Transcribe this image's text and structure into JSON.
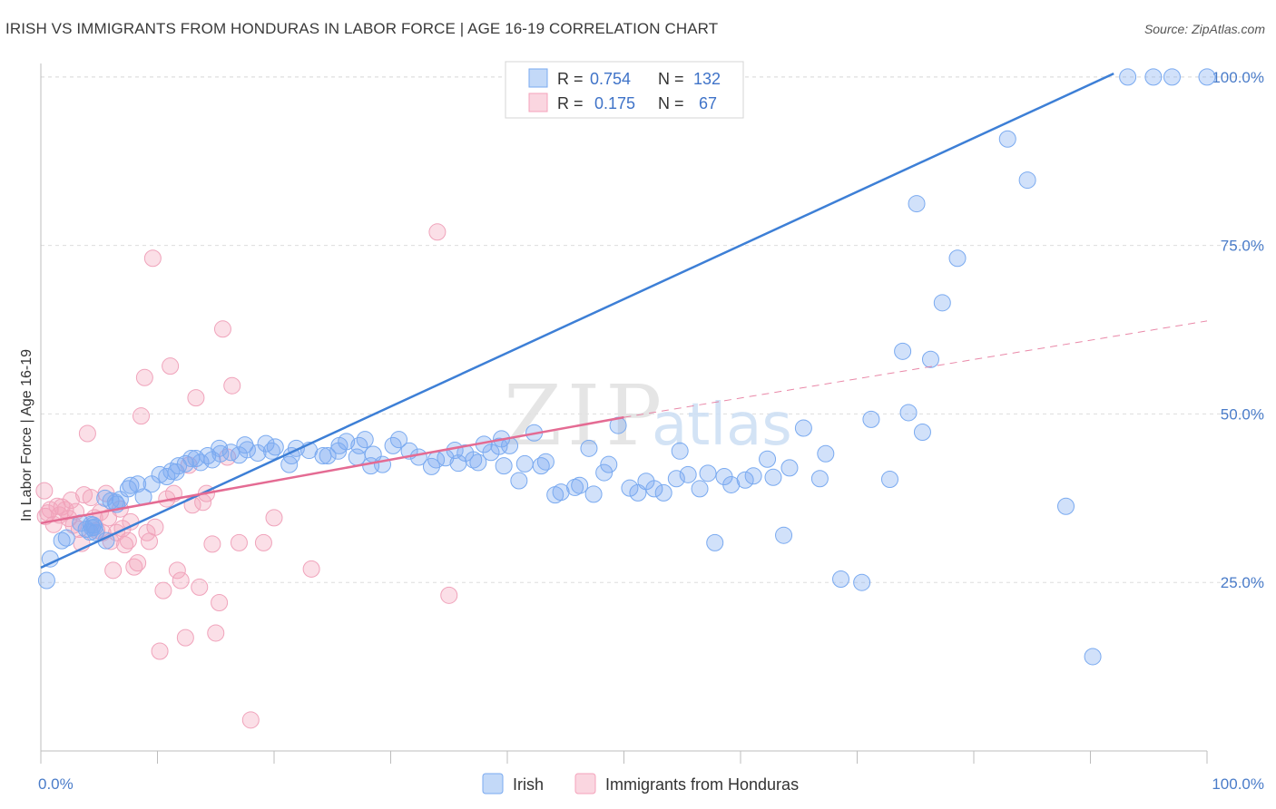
{
  "header": {
    "title": "IRISH VS IMMIGRANTS FROM HONDURAS IN LABOR FORCE | AGE 16-19 CORRELATION CHART",
    "source": "Source: ZipAtlas.com"
  },
  "watermark": {
    "zip": "ZIP",
    "atlas": "atlas"
  },
  "legend_box": {
    "rows": [
      {
        "r_label": "R =",
        "r_value": "0.754",
        "n_label": "N =",
        "n_value": "132",
        "color": "#7aaaf0"
      },
      {
        "r_label": "R =",
        "r_value": "0.175",
        "n_label": "N =",
        "n_value": "67",
        "color": "#f4a3bb"
      }
    ]
  },
  "bottom_legend": [
    {
      "label": "Irish",
      "color": "#7aaaf0"
    },
    {
      "label": "Immigrants from Honduras",
      "color": "#f4a3bb"
    }
  ],
  "colors": {
    "blue": "#3d7fd6",
    "blue_fill": "rgba(122,170,240,0.35)",
    "pink": "#e46b93",
    "pink_fill": "rgba(244,163,187,0.35)",
    "tick": "#4a7cc9"
  },
  "chart_data": {
    "type": "scatter",
    "title": "IRISH VS IMMIGRANTS FROM HONDURAS IN LABOR FORCE | AGE 16-19 CORRELATION CHART",
    "xlabel": "",
    "ylabel": "In Labor Force | Age 16-19",
    "xlim": [
      0,
      100
    ],
    "ylim": [
      0,
      102
    ],
    "x_tick_labels": [
      "0.0%",
      "100.0%"
    ],
    "y_tick_labels": [
      "25.0%",
      "50.0%",
      "75.0%",
      "100.0%"
    ],
    "y_ticks": [
      25,
      50,
      75,
      100
    ],
    "grid": true,
    "legend_position": "top-center",
    "series": [
      {
        "name": "Irish",
        "R": 0.754,
        "N": 132,
        "trend": {
          "x": [
            0,
            92
          ],
          "y": [
            27.2,
            100.5
          ],
          "style": "solid"
        },
        "points": [
          [
            0.5,
            25.3
          ],
          [
            0.8,
            28.5
          ],
          [
            1.8,
            31.2
          ],
          [
            2.2,
            31.6
          ],
          [
            3.4,
            33.8
          ],
          [
            3.9,
            32.9
          ],
          [
            4.5,
            33.5
          ],
          [
            4.7,
            32.4
          ],
          [
            4.4,
            33.1
          ],
          [
            4.2,
            32.5
          ],
          [
            4.3,
            33.6
          ],
          [
            4.6,
            33.2
          ],
          [
            5.5,
            37.5
          ],
          [
            5.6,
            31.2
          ],
          [
            6.0,
            37.1
          ],
          [
            6.4,
            36.9
          ],
          [
            6.5,
            36.6
          ],
          [
            6.8,
            37.3
          ],
          [
            7.5,
            38.9
          ],
          [
            7.7,
            39.4
          ],
          [
            8.3,
            39.6
          ],
          [
            8.8,
            37.7
          ],
          [
            9.5,
            39.6
          ],
          [
            10.2,
            41.0
          ],
          [
            10.8,
            40.7
          ],
          [
            11.2,
            41.5
          ],
          [
            11.6,
            41.4
          ],
          [
            11.8,
            42.3
          ],
          [
            12.4,
            42.6
          ],
          [
            12.9,
            43.4
          ],
          [
            13.3,
            43.4
          ],
          [
            13.7,
            42.8
          ],
          [
            14.3,
            43.8
          ],
          [
            14.7,
            43.2
          ],
          [
            15.3,
            44.9
          ],
          [
            15.4,
            44.1
          ],
          [
            16.3,
            44.3
          ],
          [
            17.0,
            43.9
          ],
          [
            17.5,
            45.4
          ],
          [
            17.7,
            44.7
          ],
          [
            18.6,
            44.2
          ],
          [
            19.3,
            45.6
          ],
          [
            19.8,
            44.5
          ],
          [
            20.1,
            45.1
          ],
          [
            21.3,
            42.5
          ],
          [
            21.5,
            43.8
          ],
          [
            21.9,
            44.9
          ],
          [
            23.0,
            44.6
          ],
          [
            24.2,
            43.8
          ],
          [
            24.6,
            43.8
          ],
          [
            25.5,
            44.5
          ],
          [
            25.6,
            45.3
          ],
          [
            26.2,
            45.9
          ],
          [
            27.1,
            43.6
          ],
          [
            27.3,
            45.3
          ],
          [
            27.8,
            46.2
          ],
          [
            28.3,
            42.3
          ],
          [
            28.5,
            44.0
          ],
          [
            29.3,
            42.5
          ],
          [
            30.2,
            45.3
          ],
          [
            30.7,
            46.2
          ],
          [
            31.6,
            44.5
          ],
          [
            32.4,
            43.6
          ],
          [
            33.5,
            42.2
          ],
          [
            33.9,
            43.2
          ],
          [
            34.7,
            43.5
          ],
          [
            35.5,
            44.6
          ],
          [
            35.8,
            42.7
          ],
          [
            36.4,
            44.2
          ],
          [
            37.1,
            43.2
          ],
          [
            37.5,
            42.8
          ],
          [
            38.0,
            45.5
          ],
          [
            38.6,
            44.3
          ],
          [
            39.3,
            45.2
          ],
          [
            39.5,
            46.3
          ],
          [
            39.7,
            42.3
          ],
          [
            40.2,
            45.3
          ],
          [
            41.0,
            40.1
          ],
          [
            41.5,
            42.6
          ],
          [
            42.3,
            47.2
          ],
          [
            42.9,
            42.3
          ],
          [
            43.3,
            42.9
          ],
          [
            44.1,
            38.0
          ],
          [
            44.6,
            38.4
          ],
          [
            45.8,
            39.1
          ],
          [
            46.2,
            39.4
          ],
          [
            47.0,
            44.9
          ],
          [
            47.4,
            38.1
          ],
          [
            48.3,
            41.3
          ],
          [
            48.7,
            42.5
          ],
          [
            49.5,
            48.3
          ],
          [
            50.5,
            39.0
          ],
          [
            51.2,
            38.3
          ],
          [
            51.9,
            40.0
          ],
          [
            52.6,
            38.9
          ],
          [
            53.4,
            38.3
          ],
          [
            54.5,
            40.4
          ],
          [
            54.8,
            44.5
          ],
          [
            55.5,
            41.0
          ],
          [
            56.5,
            38.9
          ],
          [
            57.2,
            41.2
          ],
          [
            57.8,
            30.9
          ],
          [
            58.6,
            40.7
          ],
          [
            59.2,
            39.5
          ],
          [
            60.4,
            40.2
          ],
          [
            61.1,
            40.8
          ],
          [
            62.3,
            43.3
          ],
          [
            62.8,
            40.6
          ],
          [
            63.7,
            32.0
          ],
          [
            64.2,
            42.0
          ],
          [
            65.4,
            47.9
          ],
          [
            66.8,
            40.4
          ],
          [
            67.3,
            44.1
          ],
          [
            68.6,
            25.5
          ],
          [
            70.4,
            25.0
          ],
          [
            71.2,
            49.2
          ],
          [
            72.8,
            40.3
          ],
          [
            73.9,
            59.3
          ],
          [
            74.4,
            50.2
          ],
          [
            75.6,
            47.3
          ],
          [
            76.3,
            58.1
          ],
          [
            77.3,
            66.5
          ],
          [
            75.1,
            81.2
          ],
          [
            78.6,
            73.1
          ],
          [
            82.9,
            90.8
          ],
          [
            84.6,
            84.7
          ],
          [
            87.9,
            36.3
          ],
          [
            90.2,
            14.0
          ],
          [
            100,
            100
          ],
          [
            93.2,
            100
          ],
          [
            95.4,
            100
          ],
          [
            97.0,
            100
          ]
        ]
      },
      {
        "name": "Immigrants from Honduras",
        "R": 0.175,
        "N": 67,
        "trend": {
          "x": [
            0,
            50
          ],
          "y": [
            33.8,
            49.5
          ],
          "style": "solid",
          "extended_to": [
            100,
            63.8
          ]
        },
        "points": [
          [
            0.3,
            38.6
          ],
          [
            0.4,
            34.8
          ],
          [
            0.6,
            35.3
          ],
          [
            0.8,
            35.8
          ],
          [
            1.1,
            33.6
          ],
          [
            1.4,
            36.3
          ],
          [
            1.6,
            35.0
          ],
          [
            1.8,
            36.2
          ],
          [
            2.1,
            35.8
          ],
          [
            2.4,
            34.5
          ],
          [
            2.6,
            37.2
          ],
          [
            2.8,
            33.5
          ],
          [
            3.0,
            35.5
          ],
          [
            3.3,
            32.9
          ],
          [
            3.5,
            30.8
          ],
          [
            3.7,
            38.0
          ],
          [
            4.0,
            47.1
          ],
          [
            4.3,
            37.6
          ],
          [
            4.6,
            34.6
          ],
          [
            4.8,
            32.7
          ],
          [
            5.1,
            35.4
          ],
          [
            5.3,
            32.4
          ],
          [
            5.6,
            38.2
          ],
          [
            5.8,
            34.6
          ],
          [
            6.0,
            31.1
          ],
          [
            6.2,
            26.8
          ],
          [
            6.5,
            32.4
          ],
          [
            6.8,
            35.9
          ],
          [
            7.0,
            33.0
          ],
          [
            7.2,
            30.6
          ],
          [
            7.5,
            31.2
          ],
          [
            7.7,
            34.0
          ],
          [
            8.0,
            27.3
          ],
          [
            8.3,
            27.9
          ],
          [
            8.6,
            49.7
          ],
          [
            8.9,
            55.4
          ],
          [
            9.1,
            32.4
          ],
          [
            9.3,
            31.1
          ],
          [
            9.6,
            73.1
          ],
          [
            9.8,
            33.2
          ],
          [
            10.2,
            14.8
          ],
          [
            10.5,
            23.8
          ],
          [
            10.8,
            37.4
          ],
          [
            11.1,
            57.1
          ],
          [
            11.4,
            38.2
          ],
          [
            11.7,
            26.8
          ],
          [
            12.0,
            25.3
          ],
          [
            12.4,
            16.8
          ],
          [
            12.7,
            42.4
          ],
          [
            13.0,
            36.5
          ],
          [
            13.3,
            52.4
          ],
          [
            13.6,
            24.3
          ],
          [
            13.9,
            36.9
          ],
          [
            14.2,
            38.2
          ],
          [
            14.7,
            30.7
          ],
          [
            15.0,
            17.5
          ],
          [
            15.3,
            22.0
          ],
          [
            15.6,
            62.6
          ],
          [
            16.0,
            43.6
          ],
          [
            16.4,
            54.2
          ],
          [
            17.0,
            30.9
          ],
          [
            18.0,
            4.6
          ],
          [
            19.1,
            30.9
          ],
          [
            20.0,
            34.6
          ],
          [
            23.2,
            27.0
          ],
          [
            34.0,
            77.0
          ],
          [
            35.0,
            23.1
          ]
        ]
      }
    ]
  }
}
